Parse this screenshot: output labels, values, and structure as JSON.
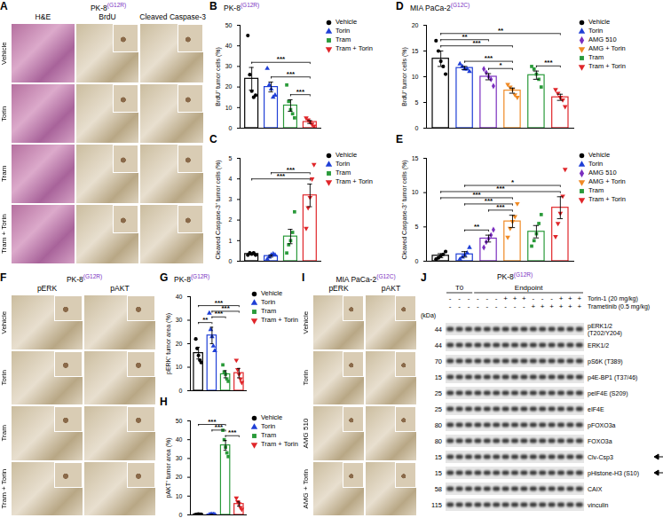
{
  "chart_data": [
    {
      "panel": "B",
      "type": "bar",
      "title": "PK-8(G12R)",
      "ylabel": "BrdU⁺ tumor cells (%)",
      "categories": [
        "Vehicle",
        "Torin",
        "Tram",
        "Tram + Torin"
      ],
      "values": [
        24,
        20,
        11,
        3
      ],
      "error": [
        5.5,
        2.4,
        2.8,
        0.7
      ],
      "points": [
        [
          45,
          26,
          18,
          15,
          16
        ],
        [
          29,
          21,
          19,
          15,
          16
        ],
        [
          21,
          13,
          9,
          7,
          5
        ],
        [
          5,
          4,
          3,
          2,
          1
        ]
      ],
      "colors": [
        "#000000",
        "#1f3fd6",
        "#2a9a3a",
        "#e0262a"
      ],
      "markers": [
        "circle",
        "triangle",
        "square",
        "triangle-down"
      ],
      "ylim": [
        0,
        50
      ],
      "yticks": [
        0,
        10,
        20,
        30,
        40,
        50
      ],
      "legend": "right",
      "tick_labels": "y",
      "significance": [
        {
          "from": "Tram",
          "to": "Tram + Torin",
          "label": "***"
        },
        {
          "from": "Torin",
          "to": "Tram + Torin",
          "label": "***"
        },
        {
          "from": "Vehicle",
          "to": "Tram + Torin",
          "label": "***"
        }
      ]
    },
    {
      "panel": "C",
      "type": "bar",
      "ylabel": "Cleaved Caspase-3⁺ tumor cells (%)",
      "categories": [
        "Vehicle",
        "Torin",
        "Tram",
        "Tram + Torin"
      ],
      "values": [
        0.35,
        0.25,
        1.2,
        3.2
      ],
      "error": [
        0.03,
        0.05,
        0.35,
        0.55
      ],
      "points": [
        [
          0.3,
          0.4,
          0.35,
          0.4,
          0.3
        ],
        [
          0.1,
          0.2,
          0.3,
          0.35,
          0.3
        ],
        [
          0.4,
          0.8,
          1,
          1.4,
          2.4
        ],
        [
          1.6,
          2.6,
          3.1,
          4,
          4.7
        ]
      ],
      "colors": [
        "#000000",
        "#1f3fd6",
        "#2a9a3a",
        "#e0262a"
      ],
      "markers": [
        "circle",
        "triangle",
        "square",
        "triangle-down"
      ],
      "ylim": [
        0,
        5
      ],
      "yticks": [
        0,
        1,
        2,
        3,
        4,
        5
      ],
      "legend": "right",
      "tick_labels": "y",
      "significance": [
        {
          "from": "Vehicle",
          "to": "Tram + Torin",
          "label": "***"
        },
        {
          "from": "Torin",
          "to": "Tram + Torin",
          "label": "***"
        }
      ]
    },
    {
      "panel": "D",
      "type": "bar",
      "title": "MIA PaCa-2(G12C)",
      "ylabel": "BrdU⁺ tumor cells (%)",
      "categories": [
        "Vehicle",
        "Torin",
        "AMG 510",
        "AMG + Torin",
        "Tram",
        "Tram + Torin"
      ],
      "values": [
        13.5,
        11.7,
        10,
        7.3,
        10.3,
        6
      ],
      "error": [
        1.5,
        0.3,
        0.6,
        0.5,
        0.8,
        0.6
      ],
      "points": [
        [
          17,
          15,
          13,
          12,
          10.5
        ],
        [
          12.5,
          12,
          11.5,
          11.5,
          11
        ],
        [
          11.5,
          10.8,
          10,
          9.5,
          8.2
        ],
        [
          8.5,
          8,
          7.5,
          6.5,
          6
        ],
        [
          12,
          11.5,
          10.5,
          9.5,
          8
        ],
        [
          7.5,
          6.8,
          6,
          5.5,
          4.2
        ]
      ],
      "colors": [
        "#000000",
        "#1f3fd6",
        "#7b2fbf",
        "#f08a24",
        "#2a9a3a",
        "#e0262a"
      ],
      "markers": [
        "circle",
        "triangle",
        "diamond",
        "triangle-down",
        "square",
        "triangle-down"
      ],
      "ylim": [
        0,
        20
      ],
      "yticks": [
        0,
        5,
        10,
        15,
        20
      ],
      "legend": "right",
      "tick_labels": "y",
      "significance": [
        {
          "from": "Tram",
          "to": "Tram + Torin",
          "label": "***"
        },
        {
          "from": "AMG 510",
          "to": "AMG + Torin",
          "label": "*"
        },
        {
          "from": "Torin",
          "to": "AMG + Torin",
          "label": "***"
        },
        {
          "from": "Vehicle",
          "to": "AMG + Torin",
          "label": "***"
        },
        {
          "from": "Vehicle",
          "to": "AMG 510",
          "label": "**"
        },
        {
          "from": "Vehicle",
          "to": "Tram + Torin",
          "label": "**"
        }
      ]
    },
    {
      "panel": "E",
      "type": "bar",
      "ylabel": "Cleaved Caspase-3⁺ tumor cells (%)",
      "categories": [
        "Vehicle",
        "Torin",
        "AMG 510",
        "AMG + Torin",
        "Tram",
        "Tram + Torin"
      ],
      "values": [
        0.8,
        1,
        3.3,
        5.8,
        4.3,
        7.8
      ],
      "error": [
        0.3,
        0.4,
        0.5,
        0.9,
        0.9,
        1.6
      ],
      "points": [
        [
          0.3,
          0.5,
          0.8,
          1,
          1.4
        ],
        [
          0.3,
          0.6,
          0.9,
          1.2,
          2
        ],
        [
          2,
          2.8,
          3.3,
          3.8,
          4.6
        ],
        [
          3.5,
          4.8,
          5.8,
          6.5,
          8.4
        ],
        [
          2.2,
          3,
          4,
          5.5,
          6.8
        ],
        [
          3.6,
          5.5,
          7,
          9.5,
          13.4
        ]
      ],
      "colors": [
        "#000000",
        "#1f3fd6",
        "#7b2fbf",
        "#f08a24",
        "#2a9a3a",
        "#e0262a"
      ],
      "markers": [
        "circle",
        "triangle",
        "diamond",
        "triangle-down",
        "square",
        "triangle-down"
      ],
      "ylim": [
        0,
        15
      ],
      "yticks": [
        0,
        5,
        10,
        15
      ],
      "legend": "right",
      "tick_labels": "y",
      "significance": [
        {
          "from": "Torin",
          "to": "AMG 510",
          "label": "**"
        },
        {
          "from": "AMG 510",
          "to": "AMG + Torin",
          "label": "***"
        },
        {
          "from": "Torin",
          "to": "AMG + Torin",
          "label": "***"
        },
        {
          "from": "Vehicle",
          "to": "AMG + Torin",
          "label": "***"
        },
        {
          "from": "Vehicle",
          "to": "Tram + Torin",
          "label": "***"
        },
        {
          "from": "Torin",
          "to": "Tram + Torin",
          "label": "*"
        }
      ]
    },
    {
      "panel": "G",
      "type": "bar",
      "title": "PK-8(G12R)",
      "ylabel": "pERK⁺ tumor area (%)",
      "categories": [
        "Vehicle",
        "Torin",
        "Tram",
        "Tram + Torin"
      ],
      "values": [
        16,
        23.5,
        7,
        7.5
      ],
      "error": [
        2.5,
        3.5,
        1.5,
        2
      ],
      "points": [
        [
          22,
          18,
          15,
          13,
          12
        ],
        [
          33,
          26,
          23,
          19,
          17
        ],
        [
          11,
          8,
          7,
          5,
          4
        ],
        [
          13,
          9,
          7,
          5,
          3.5
        ]
      ],
      "colors": [
        "#000000",
        "#1f3fd6",
        "#2a9a3a",
        "#e0262a"
      ],
      "markers": [
        "circle",
        "triangle",
        "square",
        "triangle-down"
      ],
      "ylim": [
        0,
        40
      ],
      "yticks": [
        0,
        10,
        20,
        30,
        40
      ],
      "legend": "right",
      "tick_labels": "y",
      "significance": [
        {
          "from": "Vehicle",
          "to": "Torin",
          "label": "**"
        },
        {
          "from": "Torin",
          "to": "Tram",
          "label": "***"
        },
        {
          "from": "Torin",
          "to": "Tram + Torin",
          "label": "***"
        },
        {
          "from": "Vehicle",
          "to": "Tram + Torin",
          "label": "***"
        }
      ]
    },
    {
      "panel": "H",
      "type": "bar",
      "ylabel": "pAKT⁺ tumor area (%)",
      "categories": [
        "Vehicle",
        "Torin",
        "Tram",
        "Tram + Torin"
      ],
      "values": [
        0.3,
        0.2,
        37,
        5.8
      ],
      "error": [
        0.05,
        0.05,
        2.6,
        1.1
      ],
      "points": [
        [
          0.2,
          0.3,
          0.4,
          0.3,
          0.3
        ],
        [
          0.1,
          0.2,
          0.3,
          0.2,
          0.2
        ],
        [
          45,
          40,
          36,
          33,
          31
        ],
        [
          9,
          7,
          6,
          4,
          3
        ]
      ],
      "colors": [
        "#000000",
        "#1f3fd6",
        "#2a9a3a",
        "#e0262a"
      ],
      "markers": [
        "circle",
        "triangle",
        "square",
        "triangle-down"
      ],
      "ylim": [
        0,
        50
      ],
      "yticks": [
        0,
        10,
        20,
        30,
        40,
        50
      ],
      "legend": "right",
      "tick_labels": "y",
      "significance": [
        {
          "from": "Tram",
          "to": "Tram + Torin",
          "label": "***"
        },
        {
          "from": "Torin",
          "to": "Tram",
          "label": "***"
        },
        {
          "from": "Vehicle",
          "to": "Tram",
          "label": "***"
        }
      ]
    }
  ],
  "image_panels": [
    {
      "panel": "A",
      "title": "PK-8(G12R)",
      "columns": [
        "H&E",
        "BrdU",
        "Cleaved Caspase-3"
      ],
      "rows": [
        "Vehicle",
        "Torin",
        "Tram",
        "Tram + Torin"
      ]
    },
    {
      "panel": "F",
      "title": "PK-8(G12R)",
      "columns": [
        "pERK",
        "pAKT"
      ],
      "rows": [
        "Vehicle",
        "Torin",
        "Tram",
        "Tram + Torin"
      ]
    },
    {
      "panel": "I",
      "title": "MIA PaCa-2(G12C)",
      "columns": [
        "pERK",
        "pAKT"
      ],
      "rows": [
        "Vehicle",
        "Torin",
        "AMG 510",
        "AMG + Torin"
      ]
    }
  ],
  "western_blot": {
    "panel": "J",
    "title": "PK-8(G12R)",
    "unit": "(kDa)",
    "groups": [
      {
        "label": "T0",
        "lanes": 3
      },
      {
        "label": "Endpoint",
        "lanes": 12
      }
    ],
    "treatments": [
      {
        "label": "Torin-1 (20 mg/kg)",
        "signs": [
          "-",
          "-",
          "-",
          "-",
          "-",
          "-",
          "+",
          "+",
          "+",
          "-",
          "-",
          "-",
          "+",
          "+",
          "+"
        ]
      },
      {
        "label": "Trametinib (0.5 mg/kg)",
        "signs": [
          "-",
          "-",
          "-",
          "-",
          "-",
          "-",
          "-",
          "-",
          "-",
          "+",
          "+",
          "+",
          "+",
          "+",
          "+"
        ]
      }
    ],
    "rows": [
      {
        "kda": 44,
        "label": "pERK1/2\n(T202/Y204)"
      },
      {
        "kda": 44,
        "label": "ERK1/2"
      },
      {
        "kda": 70,
        "label": "pS6K (T389)"
      },
      {
        "kda": 15,
        "label": "p4E-BP1 (T37/46)"
      },
      {
        "kda": 25,
        "label": "peIF4E (S209)"
      },
      {
        "kda": 25,
        "label": "eIF4E"
      },
      {
        "kda": 80,
        "label": "pFOXO3a"
      },
      {
        "kda": 80,
        "label": "FOXO3a"
      },
      {
        "kda": 15,
        "label": "Clv-Csp3",
        "arrow": true
      },
      {
        "kda": 15,
        "label": "pHistone-H3 (S10)",
        "arrow": true
      },
      {
        "kda": 58,
        "label": "CAIX"
      },
      {
        "kda": 115,
        "label": "vinculin"
      }
    ]
  }
}
